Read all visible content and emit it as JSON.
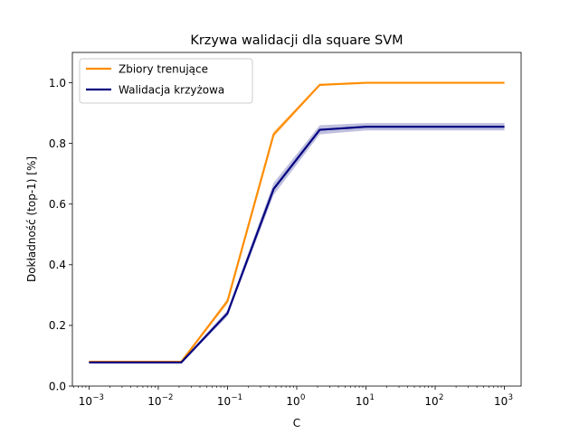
{
  "chart_data": {
    "type": "line",
    "title": "Krzywa walidacji dla square SVM",
    "xlabel": "C",
    "ylabel": "Dokładność (top-1) [%]",
    "xscale": "log",
    "xlim": [
      0.000575,
      1740
    ],
    "ylim": [
      0.0,
      1.1
    ],
    "x": [
      0.001,
      0.0215,
      0.1,
      0.464,
      2.15,
      10,
      46.4,
      215,
      1000
    ],
    "x_ticks": [
      {
        "value": 0.001,
        "base": "10",
        "exp": "−3"
      },
      {
        "value": 0.01,
        "base": "10",
        "exp": "−2"
      },
      {
        "value": 0.1,
        "base": "10",
        "exp": "−1"
      },
      {
        "value": 1,
        "base": "10",
        "exp": "0"
      },
      {
        "value": 10,
        "base": "10",
        "exp": "1"
      },
      {
        "value": 100,
        "base": "10",
        "exp": "2"
      },
      {
        "value": 1000,
        "base": "10",
        "exp": "3"
      }
    ],
    "y_ticks": [
      {
        "value": 0.0,
        "label": "0.0"
      },
      {
        "value": 0.2,
        "label": "0.2"
      },
      {
        "value": 0.4,
        "label": "0.4"
      },
      {
        "value": 0.6,
        "label": "0.6"
      },
      {
        "value": 0.8,
        "label": "0.8"
      },
      {
        "value": 1.0,
        "label": "1.0"
      }
    ],
    "legend_position": "top-left",
    "grid": false,
    "series": [
      {
        "name": "Zbiory trenujące",
        "color": "#ff8c00",
        "values": [
          0.08,
          0.08,
          0.28,
          0.83,
          0.993,
          1.0,
          1.0,
          1.0,
          1.0
        ],
        "band_low": [
          0.08,
          0.08,
          0.27,
          0.82,
          0.99,
          0.999,
          0.999,
          0.999,
          0.999
        ],
        "band_high": [
          0.08,
          0.08,
          0.29,
          0.84,
          0.996,
          1.0,
          1.0,
          1.0,
          1.0
        ]
      },
      {
        "name": "Walidacja krzyżowa",
        "color": "#000080",
        "values": [
          0.078,
          0.078,
          0.24,
          0.65,
          0.845,
          0.855,
          0.855,
          0.855,
          0.855
        ],
        "band_low": [
          0.074,
          0.074,
          0.23,
          0.63,
          0.83,
          0.843,
          0.843,
          0.843,
          0.843
        ],
        "band_high": [
          0.082,
          0.082,
          0.25,
          0.67,
          0.86,
          0.867,
          0.867,
          0.867,
          0.867
        ]
      }
    ]
  }
}
